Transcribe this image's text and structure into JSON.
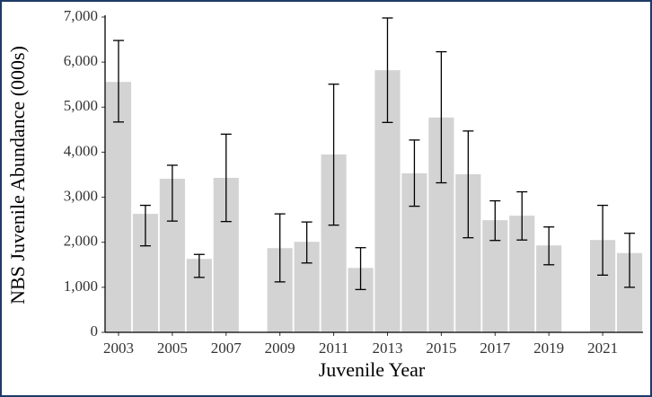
{
  "chart_data": {
    "type": "bar",
    "x_label": "Juvenile Year",
    "y_label": "NBS Juvenile Abundance (000s)",
    "categories": [
      "2003",
      null,
      "2005",
      null,
      "2007",
      null,
      "2009",
      null,
      "2011",
      null,
      "2013",
      null,
      "2015",
      null,
      "2017",
      null,
      "2019",
      null,
      "2021",
      null
    ],
    "values": [
      5560,
      2630,
      3410,
      1630,
      3430,
      null,
      1870,
      2010,
      3950,
      1430,
      5820,
      3530,
      4770,
      3510,
      2490,
      2590,
      1930,
      null,
      2050,
      1760
    ],
    "error_low": [
      4670,
      1920,
      2470,
      1220,
      2460,
      null,
      1120,
      1540,
      2380,
      950,
      4660,
      2800,
      3320,
      2100,
      2040,
      2050,
      1500,
      null,
      1270,
      1000
    ],
    "error_high": [
      6480,
      2820,
      3710,
      1730,
      4400,
      null,
      2630,
      2450,
      5510,
      1880,
      6980,
      4270,
      6230,
      4470,
      2920,
      3120,
      2340,
      null,
      2820,
      2200
    ],
    "color": "#d3d3d3",
    "ylim": [
      0,
      7000
    ],
    "yticks": [
      0,
      {
        "value": 1000,
        "label": "1,000"
      },
      {
        "value": 2000,
        "label": "2,000"
      },
      {
        "value": 3000,
        "label": "3,000"
      },
      {
        "value": 4000,
        "label": "4,000"
      },
      {
        "value": 5000,
        "label": "5,000"
      },
      {
        "value": 6000,
        "label": "6,000"
      },
      {
        "value": 7000,
        "label": "7,000"
      }
    ],
    "grid": false
  }
}
